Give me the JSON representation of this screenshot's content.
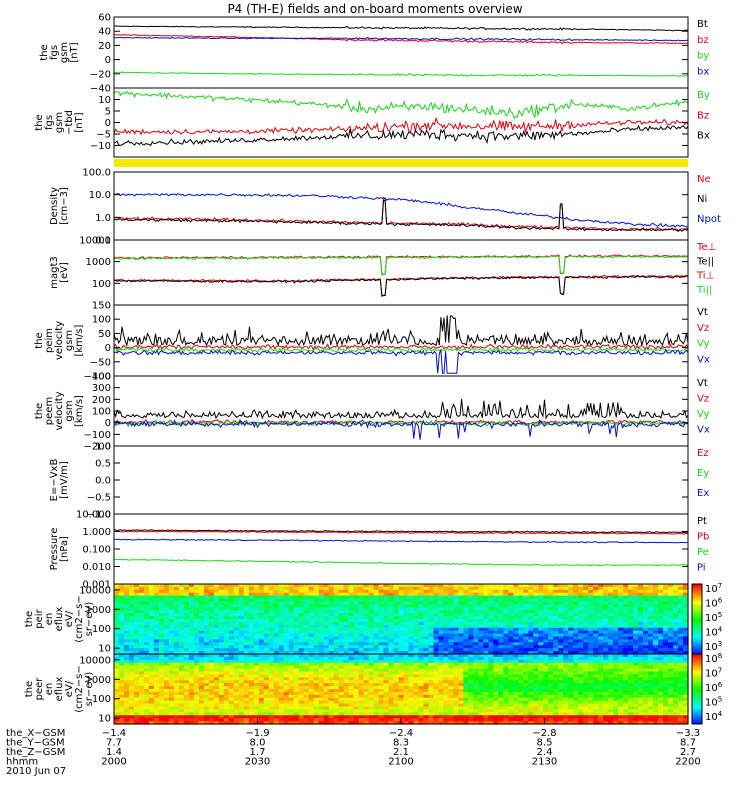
{
  "page": {
    "title": "P4 (TH-E) fields and on-board moments overview"
  },
  "colors": {
    "black": "#000000",
    "red": "#e8000b",
    "green": "#18d818",
    "blue": "#0010d0",
    "yellow": "#f5ea00"
  },
  "chart_data": [
    {
      "type": "line",
      "panel": "fgs_gsm",
      "ylabel": [
        "the",
        "fgs",
        "gsm",
        "[nT]"
      ],
      "ylim": [
        -40,
        60
      ],
      "yticks": [
        {
          "v": 60,
          "label": "60"
        },
        {
          "v": 40,
          "label": "40"
        },
        {
          "v": 20,
          "label": "20"
        },
        {
          "v": 0,
          "label": "0"
        },
        {
          "v": -20,
          "label": "−20"
        },
        {
          "v": -40,
          "label": "−40"
        }
      ],
      "series": [
        {
          "name": "Bt",
          "color": "black",
          "x": [
            0,
            0.2,
            0.4,
            0.6,
            0.8,
            1.0
          ],
          "y": [
            47,
            46,
            45,
            44,
            43,
            41
          ]
        },
        {
          "name": "bz",
          "color": "red",
          "x": [
            0,
            0.2,
            0.4,
            0.6,
            0.8,
            1.0
          ],
          "y": [
            35,
            32,
            28,
            26,
            24,
            23
          ]
        },
        {
          "name": "by",
          "color": "green",
          "x": [
            0,
            0.2,
            0.4,
            0.6,
            0.8,
            1.0
          ],
          "y": [
            -18,
            -20,
            -21,
            -22,
            -22,
            -23
          ]
        },
        {
          "name": "bx",
          "color": "blue",
          "x": [
            0,
            0.2,
            0.4,
            0.6,
            0.8,
            1.0
          ],
          "y": [
            31,
            30,
            30,
            29,
            28,
            27
          ]
        }
      ]
    },
    {
      "type": "line",
      "panel": "fgs_gsm_dtrnd",
      "ylabel": [
        "the",
        "fgs",
        "gsm",
        "−tbd",
        "[nT]"
      ],
      "ylim": [
        -15,
        15
      ],
      "yticks": [
        {
          "v": 10,
          "label": "10"
        },
        {
          "v": 5,
          "label": "5"
        },
        {
          "v": 0,
          "label": "0"
        },
        {
          "v": -5,
          "label": "−5"
        },
        {
          "v": -10,
          "label": "−10"
        }
      ],
      "series": [
        {
          "name": "By",
          "color": "green",
          "x": [
            0,
            0.15,
            0.3,
            0.45,
            0.55,
            0.7,
            0.8,
            0.9,
            1.0
          ],
          "y": [
            13,
            11,
            9,
            6,
            7,
            4,
            8,
            6,
            9
          ]
        },
        {
          "name": "Bz",
          "color": "red",
          "x": [
            0,
            0.2,
            0.4,
            0.55,
            0.7,
            0.8,
            0.9,
            1.0
          ],
          "y": [
            -4,
            -4,
            -3,
            -1,
            -2,
            -1,
            0,
            0
          ]
        },
        {
          "name": "Bx",
          "color": "black",
          "x": [
            0,
            0.2,
            0.4,
            0.55,
            0.7,
            0.8,
            0.9,
            1.0
          ],
          "y": [
            -9,
            -8,
            -6,
            -5,
            -6,
            -5,
            -3,
            -2
          ]
        }
      ]
    },
    {
      "type": "line",
      "panel": "density",
      "scale": "log",
      "ylabel": [
        "Density",
        "[cm−3]"
      ],
      "ylim": [
        0.1,
        100
      ],
      "yticks": [
        {
          "v": 100,
          "label": "100.0"
        },
        {
          "v": 10,
          "label": "10.0"
        },
        {
          "v": 1,
          "label": "1.0"
        },
        {
          "v": 0.1,
          "label": "0.1"
        }
      ],
      "series": [
        {
          "name": "Ne",
          "color": "red",
          "x": [
            0,
            0.2,
            0.4,
            0.6,
            0.7,
            0.8,
            0.9,
            1.0
          ],
          "y": [
            0.9,
            0.8,
            0.6,
            0.5,
            0.4,
            0.35,
            0.3,
            0.3
          ]
        },
        {
          "name": "Ni",
          "color": "black",
          "x": [
            0,
            0.2,
            0.4,
            0.6,
            0.7,
            0.8,
            0.9,
            1.0
          ],
          "y": [
            0.8,
            0.7,
            0.55,
            0.45,
            0.35,
            0.3,
            0.28,
            0.28
          ]
        },
        {
          "name": "Npot",
          "color": "blue",
          "x": [
            0,
            0.2,
            0.35,
            0.5,
            0.6,
            0.7,
            0.8,
            0.9,
            1.0
          ],
          "y": [
            10,
            10,
            9,
            6,
            3,
            1.5,
            0.8,
            0.5,
            0.4
          ]
        }
      ]
    },
    {
      "type": "line",
      "panel": "temperature",
      "scale": "log",
      "ylabel": [
        "magt3",
        "[eV]"
      ],
      "ylim": [
        10,
        10000
      ],
      "yticks": [
        {
          "v": 10000,
          "label": "10000"
        },
        {
          "v": 1000,
          "label": "1000"
        },
        {
          "v": 100,
          "label": "100"
        }
      ],
      "series": [
        {
          "name": "Te⊥",
          "color": "red",
          "x": [
            0,
            0.3,
            0.6,
            0.8,
            1.0
          ],
          "y": [
            140,
            130,
            180,
            200,
            220
          ]
        },
        {
          "name": "Te||",
          "color": "black",
          "x": [
            0,
            0.3,
            0.6,
            0.8,
            1.0
          ],
          "y": [
            130,
            120,
            170,
            190,
            200
          ]
        },
        {
          "name": "Ti⊥",
          "color": "red",
          "x": [
            0,
            0.3,
            0.6,
            0.8,
            1.0
          ],
          "y": [
            1500,
            1600,
            1700,
            1800,
            1800
          ]
        },
        {
          "name": "Ti||",
          "color": "green",
          "x": [
            0,
            0.3,
            0.6,
            0.8,
            1.0
          ],
          "y": [
            1400,
            1500,
            1600,
            1700,
            1700
          ]
        }
      ]
    },
    {
      "type": "line",
      "panel": "peim_velocity",
      "ylabel": [
        "the",
        "peim",
        "velocity",
        "gsm",
        "[km/s]"
      ],
      "ylim": [
        -100,
        150
      ],
      "yticks": [
        {
          "v": 150,
          "label": "150"
        },
        {
          "v": 100,
          "label": "100"
        },
        {
          "v": 50,
          "label": "50"
        },
        {
          "v": 0,
          "label": "0"
        },
        {
          "v": -50,
          "label": "−50"
        },
        {
          "v": -100,
          "label": "−100"
        }
      ],
      "series": [
        {
          "name": "Vt",
          "color": "black"
        },
        {
          "name": "Vz",
          "color": "red"
        },
        {
          "name": "Vy",
          "color": "green"
        },
        {
          "name": "Vx",
          "color": "blue"
        }
      ]
    },
    {
      "type": "line",
      "panel": "peem_velocity",
      "ylabel": [
        "the",
        "peem",
        "velocity",
        "gsm",
        "[km/s]"
      ],
      "ylim": [
        -200,
        400
      ],
      "yticks": [
        {
          "v": 400,
          "label": "400"
        },
        {
          "v": 300,
          "label": "300"
        },
        {
          "v": 200,
          "label": "200"
        },
        {
          "v": 100,
          "label": "100"
        },
        {
          "v": 0,
          "label": "0"
        },
        {
          "v": -100,
          "label": "−100"
        },
        {
          "v": -200,
          "label": "−200"
        }
      ],
      "series": [
        {
          "name": "Vt",
          "color": "black"
        },
        {
          "name": "Vz",
          "color": "red"
        },
        {
          "name": "Vy",
          "color": "green"
        },
        {
          "name": "Vx",
          "color": "blue"
        }
      ]
    },
    {
      "type": "line",
      "panel": "e_vxb",
      "ylabel": [
        "E=−VxB",
        "[mV/m]"
      ],
      "ylim": [
        -1,
        1
      ],
      "yticks": [
        {
          "v": 1,
          "label": "1.0"
        },
        {
          "v": 0.5,
          "label": "0.5"
        },
        {
          "v": 0,
          "label": "0.0"
        },
        {
          "v": -0.5,
          "label": "−0.5"
        },
        {
          "v": -1,
          "label": "−1.0"
        }
      ],
      "series": [
        {
          "name": "Ez",
          "color": "red"
        },
        {
          "name": "Ey",
          "color": "green"
        },
        {
          "name": "Ex",
          "color": "blue"
        }
      ]
    },
    {
      "type": "line",
      "panel": "pressure",
      "scale": "log",
      "ylabel": [
        "Pressure",
        "[nPa]"
      ],
      "ylim": [
        0.001,
        10
      ],
      "yticks": [
        {
          "v": 10,
          "label": "10.000"
        },
        {
          "v": 1,
          "label": "1.000"
        },
        {
          "v": 0.1,
          "label": "0.100"
        },
        {
          "v": 0.01,
          "label": "0.010"
        },
        {
          "v": 0.001,
          "label": "0.001"
        }
      ],
      "series": [
        {
          "name": "Pt",
          "color": "black",
          "x": [
            0,
            0.25,
            0.5,
            0.75,
            1.0
          ],
          "y": [
            1.2,
            1.1,
            1.0,
            0.95,
            0.9
          ]
        },
        {
          "name": "Pb",
          "color": "red",
          "x": [
            0,
            0.25,
            0.5,
            0.75,
            1.0
          ],
          "y": [
            1.0,
            0.95,
            0.85,
            0.8,
            0.75
          ]
        },
        {
          "name": "Pe",
          "color": "green",
          "x": [
            0,
            0.25,
            0.5,
            0.75,
            1.0
          ],
          "y": [
            0.025,
            0.02,
            0.015,
            0.012,
            0.012
          ]
        },
        {
          "name": "Pi",
          "color": "blue",
          "x": [
            0,
            0.25,
            0.5,
            0.75,
            1.0
          ],
          "y": [
            0.35,
            0.32,
            0.28,
            0.25,
            0.23
          ]
        }
      ]
    },
    {
      "type": "heatmap",
      "panel": "peir_en_eflux",
      "ylabel": [
        "the",
        "peir",
        "en",
        "eflux",
        "eV/",
        "(cm2−s−",
        "sr−eV)"
      ],
      "yticks": [
        {
          "v": 10000,
          "label": "10000"
        },
        {
          "v": 1000,
          "label": "1000"
        },
        {
          "v": 100,
          "label": "100"
        },
        {
          "v": 10,
          "label": "10"
        }
      ],
      "colorbar": [
        {
          "exp": "7"
        },
        {
          "exp": "6"
        },
        {
          "exp": "5"
        },
        {
          "exp": "4"
        },
        {
          "exp": "3"
        }
      ]
    },
    {
      "type": "heatmap",
      "panel": "peer_en_eflux",
      "ylabel": [
        "the",
        "peer",
        "en",
        "eflux",
        "eV/",
        "(cm2−s−",
        "sr−eV)"
      ],
      "yticks": [
        {
          "v": 10000,
          "label": "10000"
        },
        {
          "v": 1000,
          "label": "1000"
        },
        {
          "v": 100,
          "label": "100"
        },
        {
          "v": 10,
          "label": "10"
        }
      ],
      "colorbar": [
        {
          "exp": "8"
        },
        {
          "exp": "7"
        },
        {
          "exp": "6"
        },
        {
          "exp": "5"
        },
        {
          "exp": "4"
        }
      ]
    }
  ],
  "xaxis": {
    "rows": [
      {
        "label": "the_X−GSM",
        "values": [
          "−1.4",
          "−1.9",
          "−2.4",
          "−2.8",
          "−3.3"
        ]
      },
      {
        "label": "the_Y−GSM",
        "values": [
          "7.7",
          "8.0",
          "8.3",
          "8.5",
          "8.7"
        ]
      },
      {
        "label": "the_Z−GSM",
        "values": [
          "1.4",
          "1.7",
          "2.1",
          "2.4",
          "2.7"
        ]
      },
      {
        "label": "hhmm",
        "values": [
          "2000",
          "2030",
          "2100",
          "2130",
          "2200"
        ]
      }
    ],
    "date": "2010 Jun 07"
  }
}
